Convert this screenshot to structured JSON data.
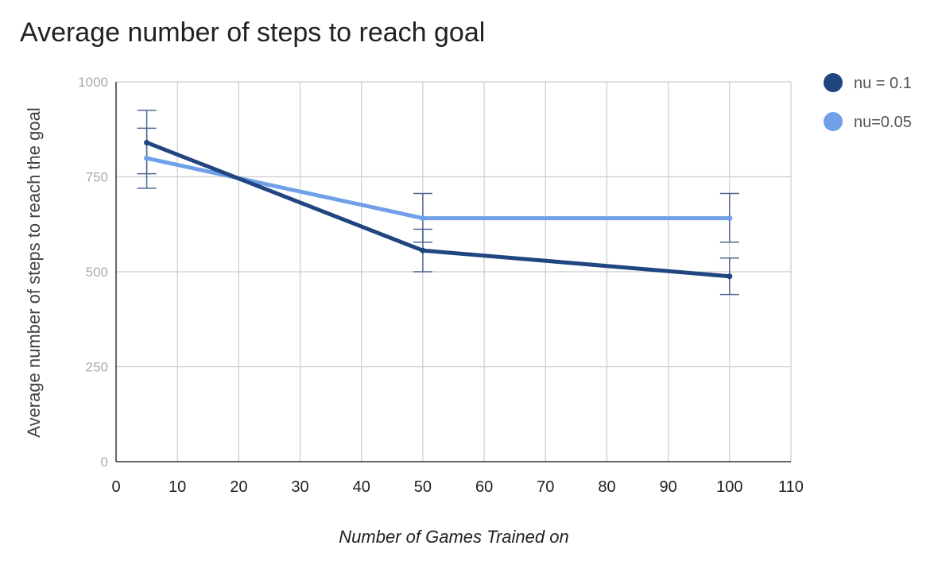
{
  "chart_data": {
    "type": "line",
    "title": "Average number of steps to reach goal",
    "xlabel": "Number of Games Trained on",
    "ylabel": "Average number of steps to reach the goal",
    "xlim": [
      0,
      110
    ],
    "ylim": [
      0,
      1000
    ],
    "x_ticks": [
      "0",
      "10",
      "20",
      "30",
      "40",
      "50",
      "60",
      "70",
      "80",
      "90",
      "100",
      "110"
    ],
    "y_ticks": [
      "0",
      "250",
      "500",
      "750",
      "1000"
    ],
    "grid": true,
    "legend_position": "top-right",
    "series": [
      {
        "name": "nu = 0.1",
        "color": "#20457f",
        "points": [
          {
            "x": 5,
            "y": 840,
            "err_low": 720,
            "err_high": 878
          },
          {
            "x": 50,
            "y": 556,
            "err_low": 500,
            "err_high": 612
          },
          {
            "x": 100,
            "y": 488,
            "err_low": 440,
            "err_high": 536
          }
        ]
      },
      {
        "name": "nu=0.05",
        "color": "#6fa0e8",
        "points": [
          {
            "x": 5,
            "y": 799,
            "err_low": 758,
            "err_high": 925
          },
          {
            "x": 50,
            "y": 641,
            "err_low": 578,
            "err_high": 706
          },
          {
            "x": 100,
            "y": 641,
            "err_low": 578,
            "err_high": 706
          }
        ]
      }
    ]
  }
}
